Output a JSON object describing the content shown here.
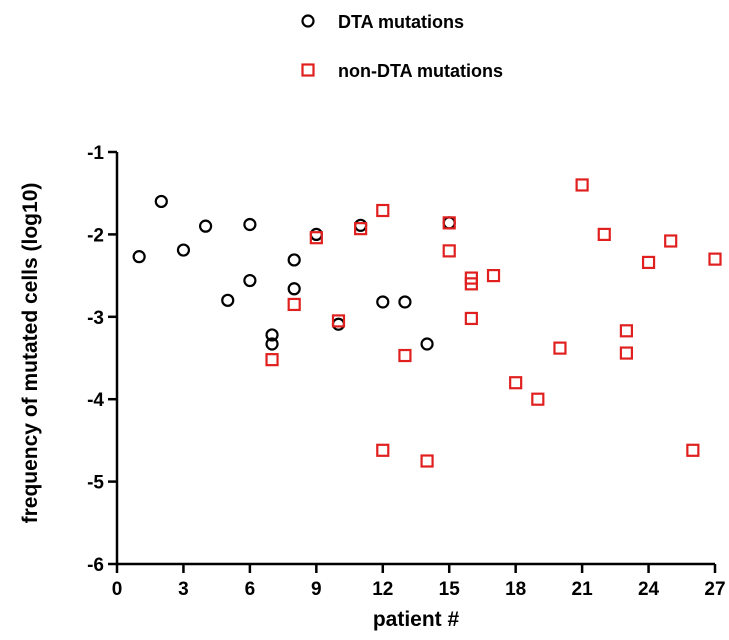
{
  "chart_data": {
    "type": "scatter",
    "title": "",
    "xlabel": "patient #",
    "ylabel": "frequency of mutated cells (log10)",
    "xlim": [
      0,
      27
    ],
    "ylim": [
      -6,
      -1
    ],
    "xticks": [
      0,
      3,
      6,
      9,
      12,
      15,
      18,
      21,
      24,
      27
    ],
    "yticks": [
      -1,
      -2,
      -3,
      -4,
      -5,
      -6
    ],
    "grid": false,
    "legend_position": "top-center",
    "series": [
      {
        "name": "DTA mutations",
        "marker": "circle",
        "color": "#000000",
        "points": [
          {
            "x": 1,
            "y": -2.27
          },
          {
            "x": 2,
            "y": -1.6
          },
          {
            "x": 3,
            "y": -2.19
          },
          {
            "x": 4,
            "y": -1.9
          },
          {
            "x": 5,
            "y": -2.8
          },
          {
            "x": 6,
            "y": -1.88
          },
          {
            "x": 6,
            "y": -2.56
          },
          {
            "x": 7,
            "y": -3.22
          },
          {
            "x": 7,
            "y": -3.33
          },
          {
            "x": 8,
            "y": -2.31
          },
          {
            "x": 8,
            "y": -2.66
          },
          {
            "x": 9,
            "y": -2.0
          },
          {
            "x": 10,
            "y": -3.09
          },
          {
            "x": 11,
            "y": -1.89
          },
          {
            "x": 12,
            "y": -2.82
          },
          {
            "x": 13,
            "y": -2.82
          },
          {
            "x": 14,
            "y": -3.33
          },
          {
            "x": 15,
            "y": -1.86
          }
        ]
      },
      {
        "name": "non-DTA mutations",
        "marker": "square",
        "color": "#e0201f",
        "points": [
          {
            "x": 7,
            "y": -3.52
          },
          {
            "x": 8,
            "y": -2.85
          },
          {
            "x": 9,
            "y": -2.04
          },
          {
            "x": 10,
            "y": -3.05
          },
          {
            "x": 11,
            "y": -1.93
          },
          {
            "x": 12,
            "y": -1.71
          },
          {
            "x": 12,
            "y": -4.62
          },
          {
            "x": 13,
            "y": -3.47
          },
          {
            "x": 14,
            "y": -4.75
          },
          {
            "x": 15,
            "y": -1.86
          },
          {
            "x": 15,
            "y": -2.2
          },
          {
            "x": 16,
            "y": -2.53
          },
          {
            "x": 16,
            "y": -2.6
          },
          {
            "x": 16,
            "y": -3.02
          },
          {
            "x": 17,
            "y": -2.5
          },
          {
            "x": 18,
            "y": -3.8
          },
          {
            "x": 19,
            "y": -4.0
          },
          {
            "x": 20,
            "y": -3.38
          },
          {
            "x": 21,
            "y": -1.4
          },
          {
            "x": 22,
            "y": -2.0
          },
          {
            "x": 23,
            "y": -3.17
          },
          {
            "x": 23,
            "y": -3.44
          },
          {
            "x": 24,
            "y": -2.34
          },
          {
            "x": 25,
            "y": -2.08
          },
          {
            "x": 26,
            "y": -4.62
          },
          {
            "x": 27,
            "y": -2.3
          }
        ]
      }
    ]
  }
}
